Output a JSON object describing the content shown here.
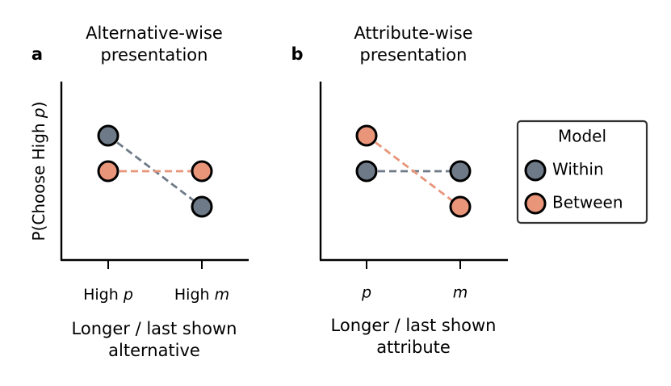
{
  "colors": {
    "within": "#6e7a88",
    "between": "#e8957a"
  },
  "legend": {
    "title": "Model",
    "placement": "right"
  },
  "ylabel": "P(Choose High p)",
  "panels": [
    {
      "letter": "a",
      "title_line1": "Alternative-wise",
      "title_line2": "presentation",
      "xlabel_line1": "Longer / last shown",
      "xlabel_line2": "alternative"
    },
    {
      "letter": "b",
      "title_line1": "Attribute-wise",
      "title_line2": "presentation",
      "xlabel_line1": "Longer / last shown",
      "xlabel_line2": "attribute"
    }
  ],
  "chart_data": [
    {
      "type": "line",
      "title": "Alternative-wise presentation",
      "xlabel": "Longer / last shown alternative",
      "ylabel": "P(Choose High p)",
      "categories": [
        "High p",
        "High m"
      ],
      "ylim": [
        0,
        1
      ],
      "grid": false,
      "series": [
        {
          "name": "Within",
          "values": [
            0.7,
            0.3
          ]
        },
        {
          "name": "Between",
          "values": [
            0.5,
            0.5
          ]
        }
      ]
    },
    {
      "type": "line",
      "title": "Attribute-wise presentation",
      "xlabel": "Longer / last shown attribute",
      "ylabel": "",
      "categories": [
        "p",
        "m"
      ],
      "ylim": [
        0,
        1
      ],
      "grid": false,
      "series": [
        {
          "name": "Within",
          "values": [
            0.5,
            0.5
          ]
        },
        {
          "name": "Between",
          "values": [
            0.7,
            0.3
          ]
        }
      ]
    }
  ]
}
